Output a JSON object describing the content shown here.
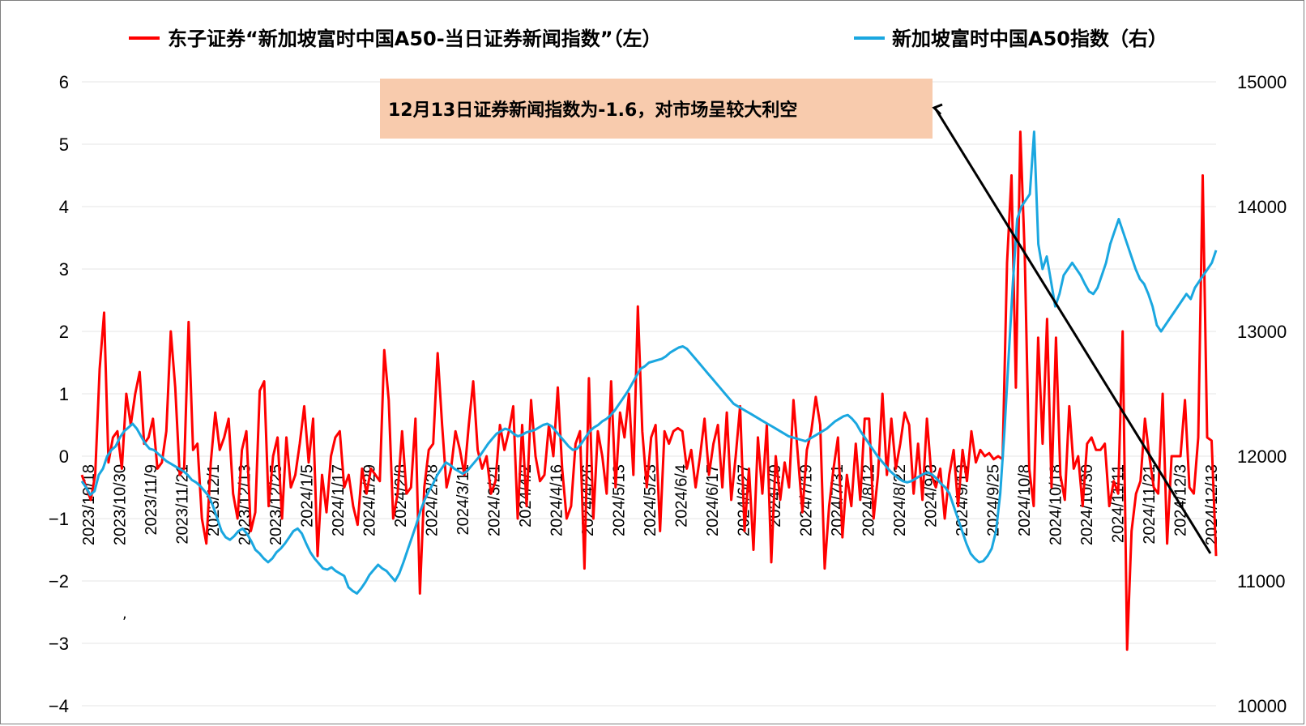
{
  "chart_data": {
    "type": "line",
    "legend": [
      {
        "name": "东子证券“新加坡富时中国A50-当日证券新闻指数”（左）",
        "color": "#ff0000",
        "axis": "left"
      },
      {
        "name": "新加坡富时中国A50指数（右）",
        "color": "#1aa7e0",
        "axis": "right"
      }
    ],
    "ylim_left": [
      -4,
      6
    ],
    "yticks_left": [
      "6",
      "5",
      "4",
      "3",
      "2",
      "1",
      "0",
      "−1",
      "−2",
      "−3",
      "−4"
    ],
    "ylim_right": [
      10000,
      15000
    ],
    "yticks_right": [
      "15000",
      "14000",
      "13000",
      "12000",
      "11000",
      "10000"
    ],
    "x_tick_labels": [
      "2023/10/18",
      "2023/10/30",
      "2023/11/9",
      "2023/11/21",
      "2023/12/1",
      "2023/12/13",
      "2023/12/25",
      "2024/1/5",
      "2024/1/17",
      "2024/1/29",
      "2024/2/8",
      "2024/2/28",
      "2024/3/11",
      "2024/3/21",
      "2024/4/2",
      "2024/4/16",
      "2024/4/26",
      "2024/5/13",
      "2024/5/23",
      "2024/6/4",
      "2024/6/17",
      "2024/6/27",
      "2024/7/9",
      "2024/7/19",
      "2024/7/31",
      "2024/8/12",
      "2024/8/22",
      "2024/9/3",
      "2024/9/13",
      "2024/9/25",
      "2024/10/8",
      "2024/10/18",
      "2024/10/30",
      "2024/11/11",
      "2024/11/21",
      "2024/12/3",
      "2024/12/13"
    ],
    "series": [
      {
        "name": "东子证券“新加坡富时中国A50-当日证券新闻指数”（左）",
        "axis": "left",
        "color": "#ff0000",
        "values": [
          -0.3,
          -0.5,
          -0.7,
          -0.3,
          1.4,
          2.3,
          -0.1,
          0.3,
          0.4,
          -0.2,
          1.0,
          0.5,
          1.0,
          1.35,
          0.2,
          0.3,
          0.6,
          -0.2,
          -0.1,
          0.4,
          2.0,
          1.1,
          -0.3,
          -0.2,
          2.15,
          0.1,
          0.2,
          -1.0,
          -1.4,
          -0.1,
          0.7,
          0.1,
          0.3,
          0.6,
          -0.6,
          -1.0,
          0.1,
          0.4,
          -1.2,
          -0.9,
          1.05,
          1.2,
          -0.8,
          0.0,
          0.3,
          -1.0,
          0.3,
          -0.5,
          -0.3,
          0.2,
          0.8,
          -0.1,
          0.6,
          -1.6,
          -0.3,
          -0.9,
          0.0,
          0.3,
          0.4,
          -0.5,
          -0.3,
          -0.8,
          -1.1,
          -0.2,
          -0.6,
          -0.2,
          -0.3,
          -0.4,
          1.7,
          0.9,
          -1.0,
          -0.6,
          0.4,
          -0.6,
          -0.5,
          0.6,
          -2.2,
          -0.5,
          0.1,
          0.2,
          1.65,
          0.5,
          -0.5,
          -0.2,
          0.4,
          0.1,
          -0.3,
          0.5,
          1.2,
          0.1,
          -0.2,
          0.0,
          -0.6,
          -0.4,
          0.5,
          0.1,
          0.4,
          0.8,
          -1.0,
          0.5,
          -0.8,
          0.9,
          0.0,
          -0.4,
          -0.3,
          0.5,
          0.0,
          1.1,
          -0.2,
          -1.0,
          -0.8,
          0.2,
          0.4,
          -1.8,
          1.25,
          -1.0,
          0.4,
          0.0,
          -0.6,
          1.2,
          -0.5,
          0.7,
          0.3,
          1.0,
          -0.3,
          2.4,
          0.4,
          -0.5,
          0.3,
          0.5,
          -1.2,
          0.4,
          0.2,
          0.4,
          0.45,
          0.4,
          -0.2,
          0.1,
          -0.5,
          0.0,
          0.6,
          -0.3,
          0.2,
          0.5,
          -0.5,
          0.7,
          -0.7,
          0.0,
          0.8,
          -1.2,
          -0.2,
          -1.5,
          0.3,
          -0.6,
          0.5,
          -1.7,
          0.0,
          -0.7,
          -0.1,
          -0.5,
          0.9,
          0.0,
          -0.9,
          0.1,
          0.4,
          0.95,
          0.5,
          -1.8,
          -0.8,
          -0.2,
          0.3,
          -1.3,
          -0.3,
          -0.8,
          0.2,
          -0.7,
          0.6,
          0.6,
          -1.0,
          -0.3,
          1.0,
          -0.3,
          0.6,
          -0.2,
          0.2,
          0.7,
          0.5,
          -0.6,
          0.2,
          -0.7,
          0.6,
          -0.3,
          -0.5,
          -0.2,
          -1.0,
          -0.3,
          0.1,
          -0.8,
          0.1,
          -0.4,
          0.4,
          -0.1,
          0.1,
          0.0,
          0.05,
          -0.05,
          0.0,
          -0.05,
          3.1,
          4.5,
          1.1,
          5.2,
          3.2,
          -0.2,
          -0.8,
          1.9,
          0.2,
          2.2,
          -0.5,
          1.9,
          -0.3,
          -0.7,
          0.8,
          -0.2,
          0.0,
          -0.8,
          0.2,
          0.3,
          0.1,
          0.1,
          0.2,
          -0.8,
          -0.4,
          -0.6,
          2.0,
          -3.1,
          -1.2,
          -0.6,
          -0.4,
          0.6,
          0.0,
          -0.5,
          -0.6,
          1.0,
          -1.4,
          0.0,
          0.0,
          0.0,
          0.9,
          -0.5,
          -0.6,
          0.3,
          4.5,
          0.3,
          0.25,
          -1.6
        ]
      },
      {
        "name": "新加坡富时中国A50指数（右）",
        "axis": "right",
        "color": "#1aa7e0",
        "values": [
          11800,
          11750,
          11690,
          11720,
          11850,
          11900,
          12000,
          12050,
          12080,
          12150,
          12200,
          12230,
          12260,
          12220,
          12160,
          12100,
          12060,
          12050,
          12020,
          11990,
          11960,
          11940,
          11920,
          11900,
          11880,
          11850,
          11810,
          11790,
          11760,
          11720,
          11680,
          11600,
          11500,
          11400,
          11350,
          11330,
          11360,
          11400,
          11420,
          11380,
          11320,
          11250,
          11220,
          11180,
          11150,
          11180,
          11230,
          11260,
          11300,
          11350,
          11400,
          11420,
          11380,
          11300,
          11230,
          11180,
          11140,
          11100,
          11090,
          11110,
          11080,
          11060,
          11040,
          10950,
          10920,
          10900,
          10940,
          10990,
          11050,
          11090,
          11130,
          11100,
          11080,
          11040,
          11000,
          11060,
          11150,
          11250,
          11350,
          11450,
          11560,
          11650,
          11720,
          11780,
          11850,
          11900,
          11950,
          11930,
          11900,
          11880,
          11860,
          11880,
          11920,
          11960,
          12000,
          12050,
          12100,
          12140,
          12180,
          12200,
          12220,
          12210,
          12180,
          12160,
          12170,
          12190,
          12200,
          12210,
          12230,
          12250,
          12260,
          12240,
          12200,
          12160,
          12120,
          12080,
          12050,
          12060,
          12100,
          12150,
          12200,
          12230,
          12250,
          12280,
          12300,
          12330,
          12370,
          12420,
          12470,
          12520,
          12580,
          12640,
          12700,
          12720,
          12750,
          12760,
          12770,
          12780,
          12800,
          12830,
          12850,
          12870,
          12880,
          12860,
          12820,
          12780,
          12740,
          12700,
          12660,
          12620,
          12580,
          12540,
          12500,
          12460,
          12420,
          12400,
          12380,
          12360,
          12340,
          12320,
          12300,
          12280,
          12260,
          12240,
          12220,
          12200,
          12180,
          12160,
          12150,
          12140,
          12130,
          12120,
          12140,
          12160,
          12180,
          12200,
          12220,
          12250,
          12280,
          12300,
          12320,
          12330,
          12300,
          12260,
          12200,
          12150,
          12100,
          12050,
          12000,
          11960,
          11920,
          11880,
          11850,
          11820,
          11800,
          11790,
          11800,
          11820,
          11840,
          11860,
          11870,
          11850,
          11820,
          11780,
          11750,
          11700,
          11600,
          11500,
          11400,
          11300,
          11220,
          11180,
          11150,
          11160,
          11200,
          11260,
          11400,
          11700,
          12200,
          12800,
          13400,
          13900,
          14000,
          14050,
          14100,
          14600,
          13700,
          13500,
          13600,
          13400,
          13200,
          13300,
          13450,
          13500,
          13550,
          13500,
          13450,
          13380,
          13320,
          13300,
          13350,
          13450,
          13550,
          13700,
          13800,
          13900,
          13800,
          13700,
          13600,
          13500,
          13420,
          13380,
          13300,
          13200,
          13050,
          13000,
          13050,
          13100,
          13150,
          13200,
          13250,
          13300,
          13260,
          13350,
          13400,
          13450,
          13500,
          13550,
          13650
        ]
      }
    ],
    "annotation": {
      "text": "12月13日证券新闻指数为-1.6，对市场呈较大利空"
    }
  }
}
